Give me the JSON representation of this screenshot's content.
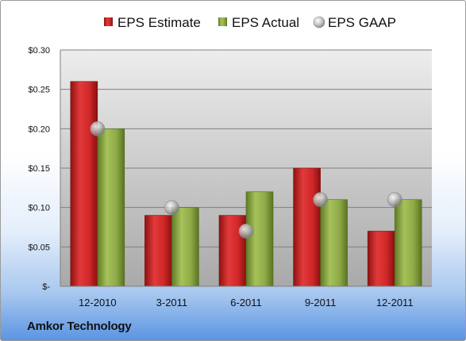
{
  "chart_data": {
    "type": "bar",
    "categories": [
      "12-2010",
      "3-2011",
      "6-2011",
      "9-2011",
      "12-2011"
    ],
    "series": [
      {
        "name": "EPS Estimate",
        "kind": "bar",
        "color": "#d42f2f",
        "values": [
          0.26,
          0.09,
          0.09,
          0.15,
          0.07
        ]
      },
      {
        "name": "EPS Actual",
        "kind": "bar",
        "color": "#93b04c",
        "values": [
          0.2,
          0.1,
          0.12,
          0.11,
          0.11
        ]
      },
      {
        "name": "EPS GAAP",
        "kind": "marker",
        "color": "#b9b9b9",
        "values": [
          0.2,
          0.1,
          0.07,
          0.11,
          0.11
        ]
      }
    ],
    "y_ticks": [
      {
        "value": 0,
        "label": "$-"
      },
      {
        "value": 0.05,
        "label": "$0.05"
      },
      {
        "value": 0.1,
        "label": "$0.10"
      },
      {
        "value": 0.15,
        "label": "$0.15"
      },
      {
        "value": 0.2,
        "label": "$0.20"
      },
      {
        "value": 0.25,
        "label": "$0.25"
      },
      {
        "value": 0.3,
        "label": "$0.30"
      }
    ],
    "ylim": [
      0,
      0.3
    ],
    "grid": true,
    "legend_position": "top"
  },
  "footer": {
    "company": "Amkor Technology"
  }
}
